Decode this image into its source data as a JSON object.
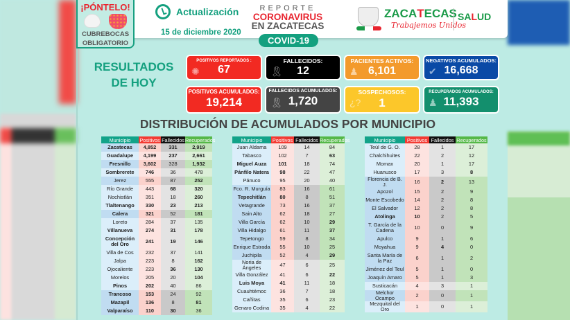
{
  "badge": {
    "title": "¡PÓNTELO!",
    "line1": "CUBREBOCAS",
    "line2": "OBLIGATORIO"
  },
  "update": {
    "label": "Actualización",
    "date": "15 de diciembre 2020"
  },
  "report": {
    "line1": "REPORTE",
    "line2": "CORONAVIRUS",
    "line3": "EN ZACATECAS",
    "pill": "COVID-19"
  },
  "logo": {
    "name_a": "ZACA",
    "name_b": "T",
    "name_c": "ECAS",
    "tagline": "Trabajemos Unidos",
    "salud_a": "SA",
    "salud_b": "L",
    "salud_c": "UD"
  },
  "results": {
    "heading_line1": "RESULTADOS",
    "heading_line2": "DE HOY",
    "cards": [
      {
        "label": "POSITIVOS REPORTADOS :",
        "value": "67",
        "color": "#f22a22",
        "icon": "virus-icon"
      },
      {
        "label": "FALLECIDOS:",
        "value": "12",
        "color": "#000000",
        "icon": "ribbon-icon"
      },
      {
        "label": "PACIENTES ACTIVOS:",
        "value": "6,101",
        "color": "#f39a2c",
        "icon": "person-icon"
      },
      {
        "label": "NEGATIVOS ACUMULADOS:",
        "value": "16,668",
        "color": "#0a4aa6",
        "icon": "check-circle-icon"
      },
      {
        "label": "POSITIVOS ACUMULADOS:",
        "value": "19,214",
        "color": "#f22a22",
        "icon": "none"
      },
      {
        "label": "FALLECIDOS ACUMULADOS:",
        "value": "1,720",
        "color": "#444444",
        "icon": "ribbon-icon"
      },
      {
        "label": "SOSPECHOSOS:",
        "value": "1",
        "color": "#fcc72a",
        "icon": "question-icon"
      },
      {
        "label": "RECUPERADOS ACUMULADOS:",
        "value": "11,393",
        "color": "#138f6d",
        "icon": "person-icon"
      }
    ]
  },
  "distribution": {
    "title": "DISTRIBUCIÓN DE ACUMULADOS POR MUNICIPIO",
    "headers": [
      "Municipio",
      "Positivos",
      "Fallecidos",
      "Recuperados"
    ],
    "tables": [
      [
        [
          "Zacatecas",
          "4,852",
          "331",
          "2,919"
        ],
        [
          "Guadalupe",
          "4,199",
          "237",
          "2,661"
        ],
        [
          "Fresnillo",
          "3,602",
          "328",
          "1,932"
        ],
        [
          "Sombrerete",
          "746",
          "36",
          "478"
        ],
        [
          "Jerez",
          "555",
          "87",
          "252"
        ],
        [
          "Río Grande",
          "443",
          "68",
          "320"
        ],
        [
          "Nochistlán",
          "351",
          "18",
          "260"
        ],
        [
          "Tlaltenango",
          "330",
          "23",
          "213"
        ],
        [
          "Calera",
          "321",
          "52",
          "181"
        ],
        [
          "Loreto",
          "284",
          "37",
          "135"
        ],
        [
          "Villanueva",
          "274",
          "31",
          "178"
        ],
        [
          "Concepción del Oro",
          "241",
          "19",
          "146"
        ],
        [
          "Villa de Cos",
          "232",
          "37",
          "141"
        ],
        [
          "Jalpa",
          "223",
          "8",
          "162"
        ],
        [
          "Ojocaliente",
          "223",
          "36",
          "130"
        ],
        [
          "Morelos",
          "205",
          "20",
          "104"
        ],
        [
          "Pinos",
          "202",
          "40",
          "86"
        ],
        [
          "Trancoso",
          "153",
          "24",
          "92"
        ],
        [
          "Mazapil",
          "136",
          "8",
          "81"
        ],
        [
          "Valparaíso",
          "110",
          "30",
          "36"
        ]
      ],
      [
        [
          "Juan Aldama",
          "109",
          "14",
          "84"
        ],
        [
          "Tabasco",
          "102",
          "7",
          "63"
        ],
        [
          "Miguel Auza",
          "101",
          "18",
          "74"
        ],
        [
          "Pánfilo Natera",
          "98",
          "22",
          "47"
        ],
        [
          "Pánuco",
          "95",
          "20",
          "40"
        ],
        [
          "Fco. R. Murguía",
          "83",
          "16",
          "61"
        ],
        [
          "Tepechitlán",
          "80",
          "8",
          "51"
        ],
        [
          "Vetagrande",
          "73",
          "16",
          "37"
        ],
        [
          "Sain Alto",
          "62",
          "18",
          "27"
        ],
        [
          "Villa García",
          "62",
          "10",
          "29"
        ],
        [
          "Villa Hidalgo",
          "61",
          "11",
          "37"
        ],
        [
          "Tepetongo",
          "59",
          "8",
          "34"
        ],
        [
          "Enrique Estrada",
          "55",
          "10",
          "25"
        ],
        [
          "Juchipila",
          "52",
          "4",
          "29"
        ],
        [
          "Noria de Ángeles",
          "47",
          "6",
          "25"
        ],
        [
          "Villa González",
          "41",
          "6",
          "22"
        ],
        [
          "Luis Moya",
          "41",
          "11",
          "18"
        ],
        [
          "Cuauhtémoc",
          "36",
          "7",
          "18"
        ],
        [
          "Cañitas",
          "35",
          "6",
          "23"
        ],
        [
          "Genaro Codina",
          "35",
          "4",
          "22"
        ]
      ],
      [
        [
          "Teúl de G. O.",
          "28",
          "1",
          "17"
        ],
        [
          "Chalchihuites",
          "22",
          "2",
          "12"
        ],
        [
          "Momax",
          "20",
          "1",
          "17"
        ],
        [
          "Huanusco",
          "17",
          "3",
          "8"
        ],
        [
          "Florencia de B. J.",
          "16",
          "2",
          "13"
        ],
        [
          "Apozol",
          "15",
          "2",
          "9"
        ],
        [
          "Monte Escobedo",
          "14",
          "2",
          "8"
        ],
        [
          "El Salvador",
          "12",
          "2",
          "8"
        ],
        [
          "Atolinga",
          "10",
          "2",
          "5"
        ],
        [
          "T. García de la Cadena",
          "10",
          "0",
          "9"
        ],
        [
          "Apulco",
          "9",
          "1",
          "6"
        ],
        [
          "Moyahua",
          "9",
          "4",
          "0"
        ],
        [
          "Santa María de la Paz",
          "6",
          "1",
          "2"
        ],
        [
          "Jiménez del Teul",
          "5",
          "1",
          "0"
        ],
        [
          "Joaquín Amaro",
          "5",
          "1",
          "3"
        ],
        [
          "Susticacán",
          "4",
          "3",
          "1"
        ],
        [
          "Melchor Ocampo",
          "2",
          "0",
          "1"
        ],
        [
          "Mezquital del Oro",
          "1",
          "0",
          "1"
        ]
      ]
    ]
  }
}
